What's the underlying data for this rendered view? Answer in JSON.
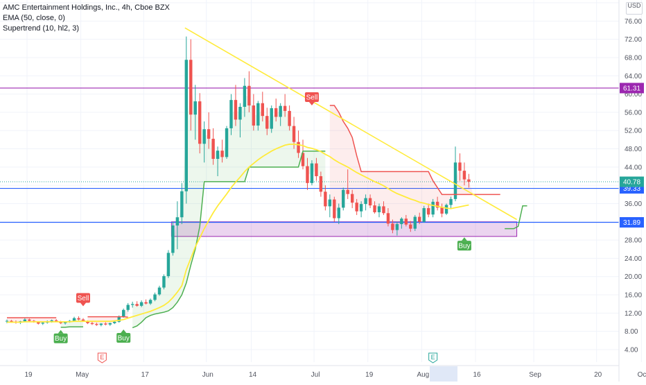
{
  "legend": {
    "title": "AMC Entertainment Holdings, Inc., 4h, Cboe BZX",
    "ema_label": "EMA (50, close, 0)",
    "supertrend_label": "Supertrend (10, hl2, 3)"
  },
  "currency": "USD",
  "colors": {
    "up": "#26a69a",
    "down": "#ef5350",
    "ema": "#ffeb3b",
    "trendline": "#ffeb3b",
    "supertrend_up": "#4caf50",
    "supertrend_down": "#ef5350",
    "resistance": "#9c27b0",
    "support": "#2962ff",
    "zone": "#9c27b0"
  },
  "chart_data": {
    "type": "candlestick",
    "symbol": "AMC",
    "timeframe": "4h",
    "y_axis": {
      "ticks": [
        "80.00",
        "76.00",
        "72.00",
        "68.00",
        "64.00",
        "60.00",
        "56.00",
        "52.00",
        "48.00",
        "44.00",
        "40.00",
        "36.00",
        "32.00",
        "28.00",
        "24.00",
        "20.00",
        "16.00",
        "12.00",
        "8.00",
        "4.00"
      ],
      "range": [
        2,
        80
      ]
    },
    "x_axis": {
      "ticks": [
        {
          "label": "19",
          "index": 0
        },
        {
          "label": "May",
          "index": 12
        },
        {
          "label": "17",
          "index": 26
        },
        {
          "label": "Jun",
          "index": 40
        },
        {
          "label": "14",
          "index": 50
        },
        {
          "label": "Jul",
          "index": 64
        },
        {
          "label": "19",
          "index": 76
        },
        {
          "label": "Aug",
          "index": 88
        },
        {
          "label": "16",
          "index": 100
        },
        {
          "label": "Sep",
          "index": 113
        },
        {
          "label": "20",
          "index": 127
        },
        {
          "label": "Oct",
          "index": 137
        }
      ]
    },
    "price_levels": [
      {
        "label": "61.31",
        "value": 61.31,
        "kind": "resistance"
      },
      {
        "label": "39.33",
        "value": 39.33,
        "kind": "support"
      },
      {
        "label": "31.89",
        "value": 31.89,
        "kind": "support"
      },
      {
        "label": "40.78",
        "value": 40.78,
        "kind": "last_price"
      }
    ],
    "zone": {
      "from_index": 37,
      "to_index": 114,
      "low": 28.8,
      "high": 32.0
    },
    "trendline": {
      "start": {
        "index": 40,
        "value": 74.5
      },
      "end": {
        "index": 114,
        "value": 32.5
      }
    },
    "signals": [
      {
        "label": "Buy",
        "index": 12,
        "value": 8.3,
        "kind": "buy"
      },
      {
        "label": "Sell",
        "index": 17,
        "value": 13.5,
        "kind": "sell"
      },
      {
        "label": "Buy",
        "index": 26,
        "value": 8.4,
        "kind": "buy"
      },
      {
        "label": "Sell",
        "index": 68,
        "value": 57.5,
        "kind": "sell"
      },
      {
        "label": "Buy",
        "index": 102,
        "value": 28.6,
        "kind": "buy"
      }
    ],
    "events": [
      {
        "label": "E",
        "index": 22,
        "kind": "earnings-past"
      },
      {
        "label": "E",
        "index": 95,
        "kind": "earnings-upcoming"
      }
    ],
    "candles": [
      [
        10.2,
        10.6,
        9.8,
        10.3
      ],
      [
        10.3,
        10.5,
        9.9,
        10.1
      ],
      [
        10.1,
        10.4,
        9.7,
        9.9
      ],
      [
        9.9,
        10.3,
        9.6,
        10.2
      ],
      [
        10.2,
        10.9,
        10.0,
        10.6
      ],
      [
        10.6,
        10.8,
        10.1,
        10.3
      ],
      [
        10.3,
        10.5,
        9.9,
        10.0
      ],
      [
        10.0,
        10.2,
        9.5,
        9.7
      ],
      [
        9.7,
        10.1,
        9.4,
        9.9
      ],
      [
        9.9,
        10.4,
        9.7,
        10.2
      ],
      [
        10.2,
        10.6,
        9.9,
        10.4
      ],
      [
        10.4,
        10.7,
        10.0,
        10.1
      ],
      [
        10.1,
        10.3,
        9.6,
        9.8
      ],
      [
        9.8,
        10.2,
        9.5,
        10.1
      ],
      [
        10.1,
        10.5,
        9.9,
        10.3
      ],
      [
        10.3,
        11.2,
        10.1,
        10.9
      ],
      [
        10.9,
        11.3,
        10.4,
        10.6
      ],
      [
        10.6,
        10.9,
        10.1,
        10.2
      ],
      [
        10.2,
        10.4,
        9.6,
        9.8
      ],
      [
        9.8,
        10.1,
        9.4,
        9.6
      ],
      [
        9.6,
        9.9,
        9.2,
        9.4
      ],
      [
        9.4,
        9.8,
        9.1,
        9.7
      ],
      [
        9.7,
        10.0,
        9.3,
        9.5
      ],
      [
        9.5,
        9.9,
        9.2,
        9.8
      ],
      [
        9.8,
        10.3,
        9.6,
        10.1
      ],
      [
        10.1,
        11.5,
        9.9,
        11.3
      ],
      [
        11.3,
        13.0,
        11.0,
        12.7
      ],
      [
        12.7,
        14.2,
        12.3,
        13.8
      ],
      [
        13.8,
        14.5,
        13.2,
        14.0
      ],
      [
        14.0,
        14.6,
        13.4,
        13.6
      ],
      [
        13.6,
        14.8,
        13.3,
        14.4
      ],
      [
        14.4,
        15.0,
        13.9,
        14.1
      ],
      [
        14.1,
        15.2,
        13.8,
        14.9
      ],
      [
        14.9,
        16.5,
        14.6,
        16.1
      ],
      [
        16.1,
        18.0,
        15.8,
        17.6
      ],
      [
        17.6,
        20.5,
        17.2,
        20.1
      ],
      [
        20.1,
        25.8,
        19.7,
        25.2
      ],
      [
        25.2,
        32.0,
        24.6,
        31.2
      ],
      [
        31.2,
        36.5,
        26.0,
        33.0
      ],
      [
        33.0,
        40.5,
        31.5,
        38.7
      ],
      [
        38.7,
        72.6,
        36.0,
        67.5
      ],
      [
        67.5,
        72.0,
        52.0,
        55.5
      ],
      [
        55.5,
        62.0,
        50.0,
        58.4
      ],
      [
        58.4,
        60.2,
        47.0,
        49.1
      ],
      [
        49.1,
        54.0,
        45.0,
        52.3
      ],
      [
        52.3,
        56.0,
        48.0,
        50.2
      ],
      [
        50.2,
        52.5,
        44.5,
        45.8
      ],
      [
        45.8,
        48.5,
        42.0,
        47.6
      ],
      [
        47.6,
        50.0,
        45.0,
        46.2
      ],
      [
        46.2,
        53.0,
        45.8,
        52.5
      ],
      [
        52.5,
        60.0,
        51.0,
        58.7
      ],
      [
        58.7,
        62.0,
        53.0,
        54.4
      ],
      [
        54.4,
        58.0,
        50.5,
        57.2
      ],
      [
        57.2,
        63.5,
        55.0,
        61.8
      ],
      [
        61.8,
        65.0,
        56.0,
        57.5
      ],
      [
        57.5,
        60.0,
        52.0,
        53.1
      ],
      [
        53.1,
        58.5,
        52.0,
        58.0
      ],
      [
        58.0,
        60.5,
        54.0,
        55.2
      ],
      [
        55.2,
        57.0,
        51.0,
        52.4
      ],
      [
        52.4,
        57.5,
        51.5,
        56.9
      ],
      [
        56.9,
        59.0,
        54.0,
        55.0
      ],
      [
        55.0,
        58.0,
        53.0,
        57.4
      ],
      [
        57.4,
        60.0,
        55.0,
        56.3
      ],
      [
        56.3,
        57.5,
        52.0,
        53.0
      ],
      [
        53.0,
        55.0,
        48.0,
        49.5
      ],
      [
        49.5,
        52.0,
        46.0,
        47.1
      ],
      [
        47.1,
        50.0,
        43.5,
        44.2
      ],
      [
        44.2,
        46.0,
        39.0,
        40.5
      ],
      [
        40.5,
        45.5,
        40.0,
        44.8
      ],
      [
        44.8,
        46.0,
        41.0,
        42.0
      ],
      [
        42.0,
        43.0,
        37.5,
        38.6
      ],
      [
        38.6,
        40.0,
        34.5,
        35.4
      ],
      [
        35.4,
        38.0,
        33.0,
        36.9
      ],
      [
        36.9,
        37.5,
        32.0,
        32.8
      ],
      [
        32.8,
        36.0,
        31.5,
        35.1
      ],
      [
        35.1,
        39.5,
        34.5,
        39.0
      ],
      [
        39.0,
        43.5,
        37.0,
        38.1
      ],
      [
        38.1,
        39.0,
        35.0,
        36.2
      ],
      [
        36.2,
        37.0,
        33.5,
        34.3
      ],
      [
        34.3,
        36.5,
        33.0,
        35.9
      ],
      [
        35.9,
        38.0,
        34.5,
        37.2
      ],
      [
        37.2,
        38.0,
        35.0,
        35.6
      ],
      [
        35.6,
        36.5,
        33.8,
        34.1
      ],
      [
        34.1,
        36.0,
        33.0,
        35.4
      ],
      [
        35.4,
        36.5,
        33.5,
        33.9
      ],
      [
        33.9,
        35.0,
        31.0,
        31.6
      ],
      [
        31.6,
        32.5,
        29.5,
        30.2
      ],
      [
        30.2,
        32.0,
        29.0,
        31.5
      ],
      [
        31.5,
        33.0,
        30.5,
        32.7
      ],
      [
        32.7,
        33.5,
        31.0,
        31.4
      ],
      [
        31.4,
        32.2,
        29.8,
        30.5
      ],
      [
        30.5,
        33.5,
        30.0,
        33.1
      ],
      [
        33.1,
        34.0,
        31.5,
        32.0
      ],
      [
        32.0,
        35.5,
        31.8,
        35.0
      ],
      [
        35.0,
        36.0,
        33.0,
        33.6
      ],
      [
        33.6,
        37.0,
        33.0,
        36.4
      ],
      [
        36.4,
        37.5,
        34.5,
        35.1
      ],
      [
        35.1,
        36.0,
        33.0,
        33.8
      ],
      [
        33.8,
        36.0,
        33.5,
        35.7
      ],
      [
        35.7,
        37.5,
        35.0,
        37.0
      ],
      [
        37.0,
        48.5,
        36.5,
        45.0
      ],
      [
        45.0,
        47.0,
        41.0,
        43.2
      ],
      [
        43.2,
        45.0,
        40.0,
        41.3
      ],
      [
        41.3,
        42.5,
        39.5,
        40.78
      ]
    ],
    "ema": [
      10.0,
      10.0,
      10.0,
      10.0,
      10.1,
      10.1,
      10.1,
      10.1,
      10.1,
      10.1,
      10.1,
      10.1,
      10.1,
      10.1,
      10.1,
      10.2,
      10.2,
      10.2,
      10.2,
      10.2,
      10.2,
      10.2,
      10.2,
      10.2,
      10.3,
      10.4,
      10.6,
      10.9,
      11.2,
      11.5,
      11.8,
      12.1,
      12.4,
      12.8,
      13.2,
      13.7,
      14.4,
      15.4,
      16.6,
      18.0,
      21.5,
      24.0,
      26.5,
      28.5,
      30.5,
      32.3,
      34.0,
      35.5,
      36.8,
      38.1,
      39.5,
      40.7,
      41.8,
      43.0,
      44.0,
      44.8,
      45.6,
      46.3,
      46.9,
      47.5,
      48.0,
      48.4,
      48.8,
      49.0,
      49.0,
      48.9,
      48.7,
      48.3,
      48.1,
      47.8,
      47.4,
      46.8,
      46.3,
      45.6,
      45.0,
      44.5,
      44.0,
      43.4,
      42.8,
      42.3,
      41.8,
      41.3,
      40.8,
      40.4,
      39.9,
      39.3,
      38.7,
      38.2,
      37.8,
      37.4,
      37.0,
      36.7,
      36.3,
      36.1,
      35.8,
      35.6,
      35.4,
      35.2,
      35.0,
      34.9,
      35.1,
      35.3,
      35.5,
      35.7
    ],
    "supertrend": [
      {
        "dir": "down",
        "values": [
          11.0,
          11.0,
          11.0,
          11.0,
          11.0,
          11.0,
          11.0,
          11.0,
          11.0,
          11.0,
          11.0,
          11.0
        ]
      },
      {
        "dir": "up",
        "values": [
          8.9,
          8.9,
          9.0,
          9.0,
          9.0,
          9.0
        ]
      },
      {
        "dir": "down",
        "values": [
          11.2,
          11.2,
          11.2,
          11.2,
          11.2,
          11.2,
          11.2,
          11.2,
          11.2,
          11.1
        ]
      },
      {
        "dir": "up",
        "values": [
          8.8,
          9.2,
          10.0,
          11.0,
          11.5,
          11.8,
          12.0,
          12.2,
          12.5,
          13.2,
          14.4,
          16.0,
          18.6,
          22.5,
          26.0,
          31.0,
          40.8,
          40.8,
          40.8,
          40.8,
          40.8,
          40.8,
          40.8,
          40.8,
          40.8,
          40.8,
          44.0,
          44.0,
          44.0,
          44.0,
          44.0,
          44.0,
          44.0,
          44.0,
          44.0,
          44.0,
          44.0,
          44.0,
          47.5,
          47.5,
          47.5,
          47.5,
          47.5,
          47.5
        ]
      },
      {
        "dir": "down",
        "values": [
          57.5,
          57.5,
          56.0,
          54.0,
          52.5,
          50.5,
          46.5,
          43.0,
          43.0,
          43.0,
          43.0,
          43.0,
          43.0,
          43.0,
          43.0,
          43.0,
          43.0,
          43.0,
          43.0,
          43.0,
          43.0,
          43.0,
          43.0,
          41.0,
          39.5,
          38.0,
          38.0,
          38.0,
          38.0,
          38.0,
          38.0,
          38.0,
          38.0,
          38.0,
          38.0,
          38.0,
          38.0,
          38.0,
          38.0
        ]
      },
      {
        "dir": "up",
        "values": [
          30.5,
          30.5,
          30.5,
          31.0,
          35.5,
          35.5
        ]
      }
    ]
  }
}
